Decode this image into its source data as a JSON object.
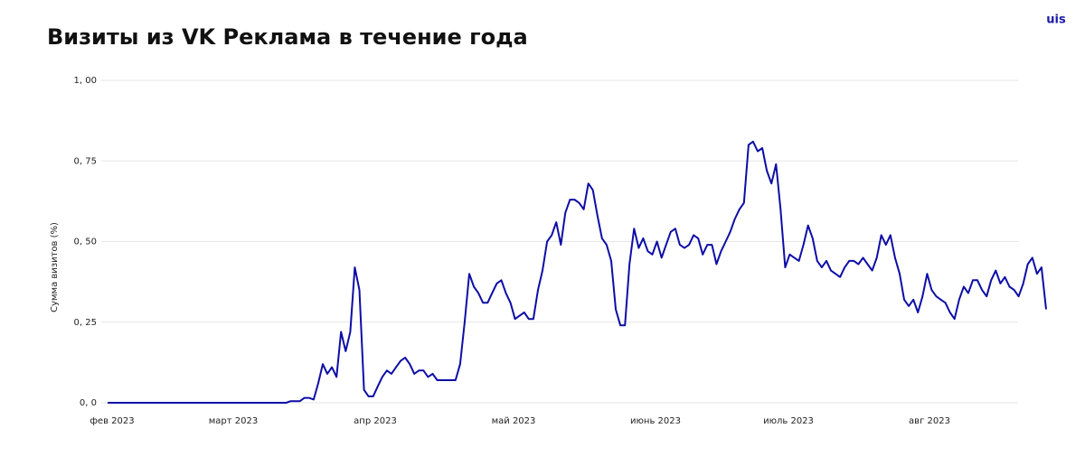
{
  "logo": "uis",
  "chart_data": {
    "type": "line",
    "title": "Визиты из VK Реклама в течение года",
    "ylabel": "Сумма визитов (%)",
    "xticks": [
      "фев 2023",
      "март 2023",
      "апр 2023",
      "май 2023",
      "июнь 2023",
      "июль 2023",
      "авг 2023"
    ],
    "ylim": [
      0,
      1
    ],
    "yticks": [
      {
        "value": 0,
        "label": "0, 0"
      },
      {
        "value": 0.25,
        "label": "0, 25"
      },
      {
        "value": 0.5,
        "label": "0, 50"
      },
      {
        "value": 0.75,
        "label": "0, 75"
      },
      {
        "value": 1,
        "label": "1, 00"
      }
    ],
    "grid": true,
    "color": "#0d0da6",
    "values": [
      0,
      0,
      0,
      0,
      0,
      0,
      0,
      0,
      0,
      0,
      0,
      0,
      0,
      0,
      0,
      0,
      0,
      0,
      0,
      0,
      0,
      0,
      0,
      0,
      0,
      0,
      0,
      0,
      0,
      0,
      0,
      0,
      0,
      0,
      0,
      0,
      0,
      0,
      0,
      0,
      0.005,
      0.005,
      0.005,
      0.015,
      0.015,
      0.01,
      0.06,
      0.12,
      0.09,
      0.11,
      0.08,
      0.22,
      0.16,
      0.22,
      0.42,
      0.35,
      0.04,
      0.02,
      0.02,
      0.05,
      0.08,
      0.1,
      0.09,
      0.11,
      0.13,
      0.14,
      0.12,
      0.09,
      0.1,
      0.1,
      0.08,
      0.09,
      0.07,
      0.07,
      0.07,
      0.07,
      0.07,
      0.12,
      0.25,
      0.4,
      0.36,
      0.34,
      0.31,
      0.31,
      0.34,
      0.37,
      0.38,
      0.34,
      0.31,
      0.26,
      0.27,
      0.28,
      0.26,
      0.26,
      0.35,
      0.41,
      0.5,
      0.52,
      0.56,
      0.49,
      0.59,
      0.63,
      0.63,
      0.62,
      0.6,
      0.68,
      0.66,
      0.58,
      0.51,
      0.49,
      0.44,
      0.29,
      0.24,
      0.24,
      0.43,
      0.54,
      0.48,
      0.51,
      0.47,
      0.46,
      0.5,
      0.45,
      0.49,
      0.53,
      0.54,
      0.49,
      0.48,
      0.49,
      0.52,
      0.51,
      0.46,
      0.49,
      0.49,
      0.43,
      0.47,
      0.5,
      0.53,
      0.57,
      0.6,
      0.62,
      0.8,
      0.81,
      0.78,
      0.79,
      0.72,
      0.68,
      0.74,
      0.6,
      0.42,
      0.46,
      0.45,
      0.44,
      0.49,
      0.55,
      0.51,
      0.44,
      0.42,
      0.44,
      0.41,
      0.4,
      0.39,
      0.42,
      0.44,
      0.44,
      0.43,
      0.45,
      0.43,
      0.41,
      0.45,
      0.52,
      0.49,
      0.52,
      0.45,
      0.4,
      0.32,
      0.3,
      0.32,
      0.28,
      0.33,
      0.4,
      0.35,
      0.33,
      0.32,
      0.31,
      0.28,
      0.26,
      0.32,
      0.36,
      0.34,
      0.38,
      0.38,
      0.35,
      0.33,
      0.38,
      0.41,
      0.37,
      0.39,
      0.36,
      0.35,
      0.33,
      0.37,
      0.43,
      0.45,
      0.4,
      0.42,
      0.29
    ]
  }
}
